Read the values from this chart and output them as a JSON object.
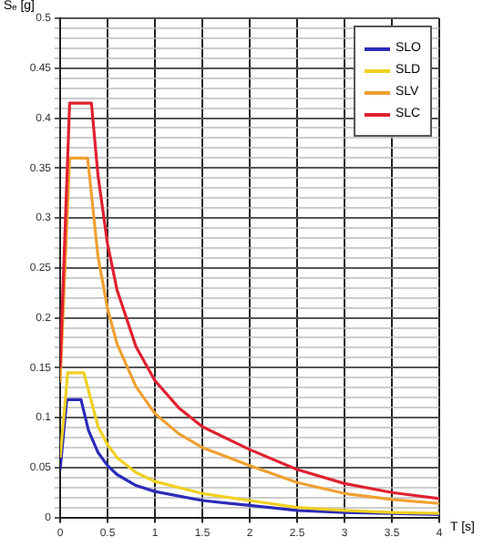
{
  "chart_data": {
    "type": "line",
    "xlabel": "T [s]",
    "ylabel": "Sₑ [g]",
    "xlim": [
      0,
      4
    ],
    "xticks": [
      0,
      0.5,
      1,
      1.5,
      2,
      2.5,
      3,
      3.5,
      4
    ],
    "ylim": [
      0,
      0.5
    ],
    "yticks": [
      0,
      {
        "value": 0.01,
        "label": null
      },
      {
        "value": 0.02,
        "label": null
      },
      {
        "value": 0.03,
        "label": null
      },
      {
        "value": 0.04,
        "label": null
      },
      0.05,
      {
        "value": 0.06,
        "label": null
      },
      {
        "value": 0.07,
        "label": null
      },
      {
        "value": 0.08,
        "label": null
      },
      {
        "value": 0.09,
        "label": null
      },
      0.1,
      {
        "value": 0.11,
        "label": null
      },
      {
        "value": 0.12,
        "label": null
      },
      {
        "value": 0.13,
        "label": null
      },
      {
        "value": 0.14,
        "label": null
      },
      0.15,
      {
        "value": 0.16,
        "label": null
      },
      {
        "value": 0.17,
        "label": null
      },
      {
        "value": 0.18,
        "label": null
      },
      {
        "value": 0.19,
        "label": null
      },
      0.2,
      {
        "value": 0.21,
        "label": null
      },
      {
        "value": 0.22,
        "label": null
      },
      {
        "value": 0.23,
        "label": null
      },
      {
        "value": 0.24,
        "label": null
      },
      0.25,
      {
        "value": 0.26,
        "label": null
      },
      {
        "value": 0.27,
        "label": null
      },
      {
        "value": 0.28,
        "label": null
      },
      {
        "value": 0.29,
        "label": null
      },
      0.3,
      {
        "value": 0.31,
        "label": null
      },
      {
        "value": 0.32,
        "label": null
      },
      {
        "value": 0.33,
        "label": null
      },
      {
        "value": 0.34,
        "label": null
      },
      0.35,
      {
        "value": 0.36,
        "label": null
      },
      {
        "value": 0.37,
        "label": null
      },
      {
        "value": 0.38,
        "label": null
      },
      {
        "value": 0.39,
        "label": null
      },
      0.4,
      {
        "value": 0.41,
        "label": null
      },
      {
        "value": 0.42,
        "label": null
      },
      {
        "value": 0.43,
        "label": null
      },
      {
        "value": 0.44,
        "label": null
      },
      0.45,
      {
        "value": 0.46,
        "label": null
      },
      {
        "value": 0.47,
        "label": null
      },
      {
        "value": 0.48,
        "label": null
      },
      {
        "value": 0.49,
        "label": null
      },
      0.5
    ],
    "grid": true,
    "legend": "top right",
    "marker": "none",
    "line_style": "solid",
    "series": [
      {
        "name": "SLO",
        "color": "#2b2bb8",
        "x": [
          0,
          0.07,
          0.22,
          0.3,
          0.4,
          0.5,
          0.6,
          0.8,
          1,
          1.5,
          2,
          2.5,
          3,
          3.5,
          4
        ],
        "values": [
          0.048,
          0.118,
          0.118,
          0.087,
          0.065,
          0.052,
          0.043,
          0.032,
          0.026,
          0.017,
          0.012,
          0.007,
          0.005,
          0.004,
          0.003
        ]
      },
      {
        "name": "SLD",
        "color": "#f0d020",
        "x": [
          0,
          0.08,
          0.25,
          0.4,
          0.5,
          0.6,
          0.8,
          1,
          1.5,
          2,
          2.5,
          3,
          3.5,
          4
        ],
        "values": [
          0.06,
          0.145,
          0.145,
          0.091,
          0.073,
          0.06,
          0.045,
          0.036,
          0.024,
          0.017,
          0.01,
          0.007,
          0.005,
          0.004
        ]
      },
      {
        "name": "SLV",
        "color": "#f0a030",
        "x": [
          0,
          0.1,
          0.29,
          0.4,
          0.5,
          0.6,
          0.8,
          1,
          1.25,
          1.5,
          2,
          2.5,
          3,
          3.5,
          4
        ],
        "values": [
          0.135,
          0.36,
          0.36,
          0.261,
          0.209,
          0.174,
          0.131,
          0.104,
          0.084,
          0.07,
          0.052,
          0.035,
          0.024,
          0.018,
          0.014
        ]
      },
      {
        "name": "SLC",
        "color": "#e02030",
        "x": [
          0,
          0.1,
          0.33,
          0.4,
          0.5,
          0.6,
          0.8,
          1,
          1.25,
          1.5,
          2,
          2.5,
          3,
          3.5,
          4
        ],
        "values": [
          0.15,
          0.415,
          0.415,
          0.342,
          0.274,
          0.228,
          0.171,
          0.137,
          0.11,
          0.091,
          0.068,
          0.048,
          0.034,
          0.025,
          0.019
        ]
      }
    ]
  }
}
